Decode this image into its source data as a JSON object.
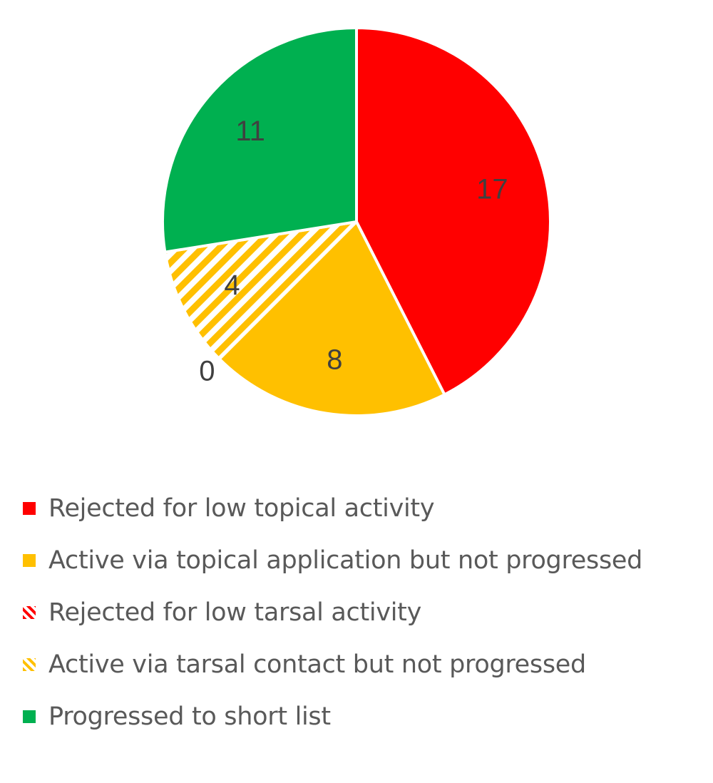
{
  "chart_data": {
    "type": "pie",
    "start_angle_deg": 0,
    "direction": "clockwise",
    "slices": [
      {
        "label": "Rejected for low topical activity",
        "value": 17,
        "color": "#FF0000",
        "pattern": "solid",
        "data_label": "17"
      },
      {
        "label": "Active via topical application but not progressed",
        "value": 8,
        "color": "#FFC000",
        "pattern": "solid",
        "data_label": "8"
      },
      {
        "label": "Rejected for low tarsal activity",
        "value": 0,
        "color": "#FF0000",
        "pattern": "striped",
        "data_label": "0"
      },
      {
        "label": "Active via tarsal contact but not progressed",
        "value": 4,
        "color": "#FFC000",
        "pattern": "striped",
        "data_label": "4"
      },
      {
        "label": "Progressed to short list",
        "value": 11,
        "color": "#00B050",
        "pattern": "solid",
        "data_label": "11"
      }
    ],
    "legend_position": "bottom"
  }
}
